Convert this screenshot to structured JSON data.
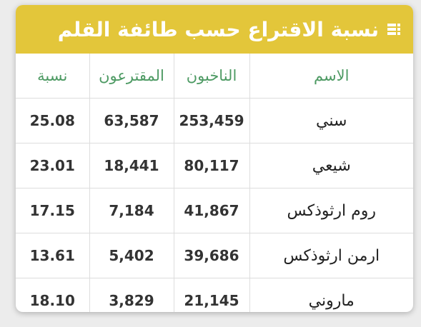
{
  "header": {
    "title": "نسبة الاقتراع حسب طائفة القلم",
    "icon": "list-icon"
  },
  "table": {
    "columns": [
      "الاسم",
      "الناخبون",
      "المقترعون",
      "نسبة"
    ],
    "rows": [
      {
        "name": "سني",
        "voters": "253,459",
        "votes": "63,587",
        "pct": "25.08"
      },
      {
        "name": "شيعي",
        "voters": "80,117",
        "votes": "18,441",
        "pct": "23.01"
      },
      {
        "name": "روم ارثوذكس",
        "voters": "41,867",
        "votes": "7,184",
        "pct": "17.15"
      },
      {
        "name": "ارمن ارثوذكس",
        "voters": "39,686",
        "votes": "5,402",
        "pct": "13.61"
      },
      {
        "name": "ماروني",
        "voters": "21,145",
        "votes": "3,829",
        "pct": "18.10"
      }
    ]
  },
  "colors": {
    "header_bg": "#e3c63a",
    "header_text": "#ffffff",
    "column_header_text": "#4d9a63"
  }
}
